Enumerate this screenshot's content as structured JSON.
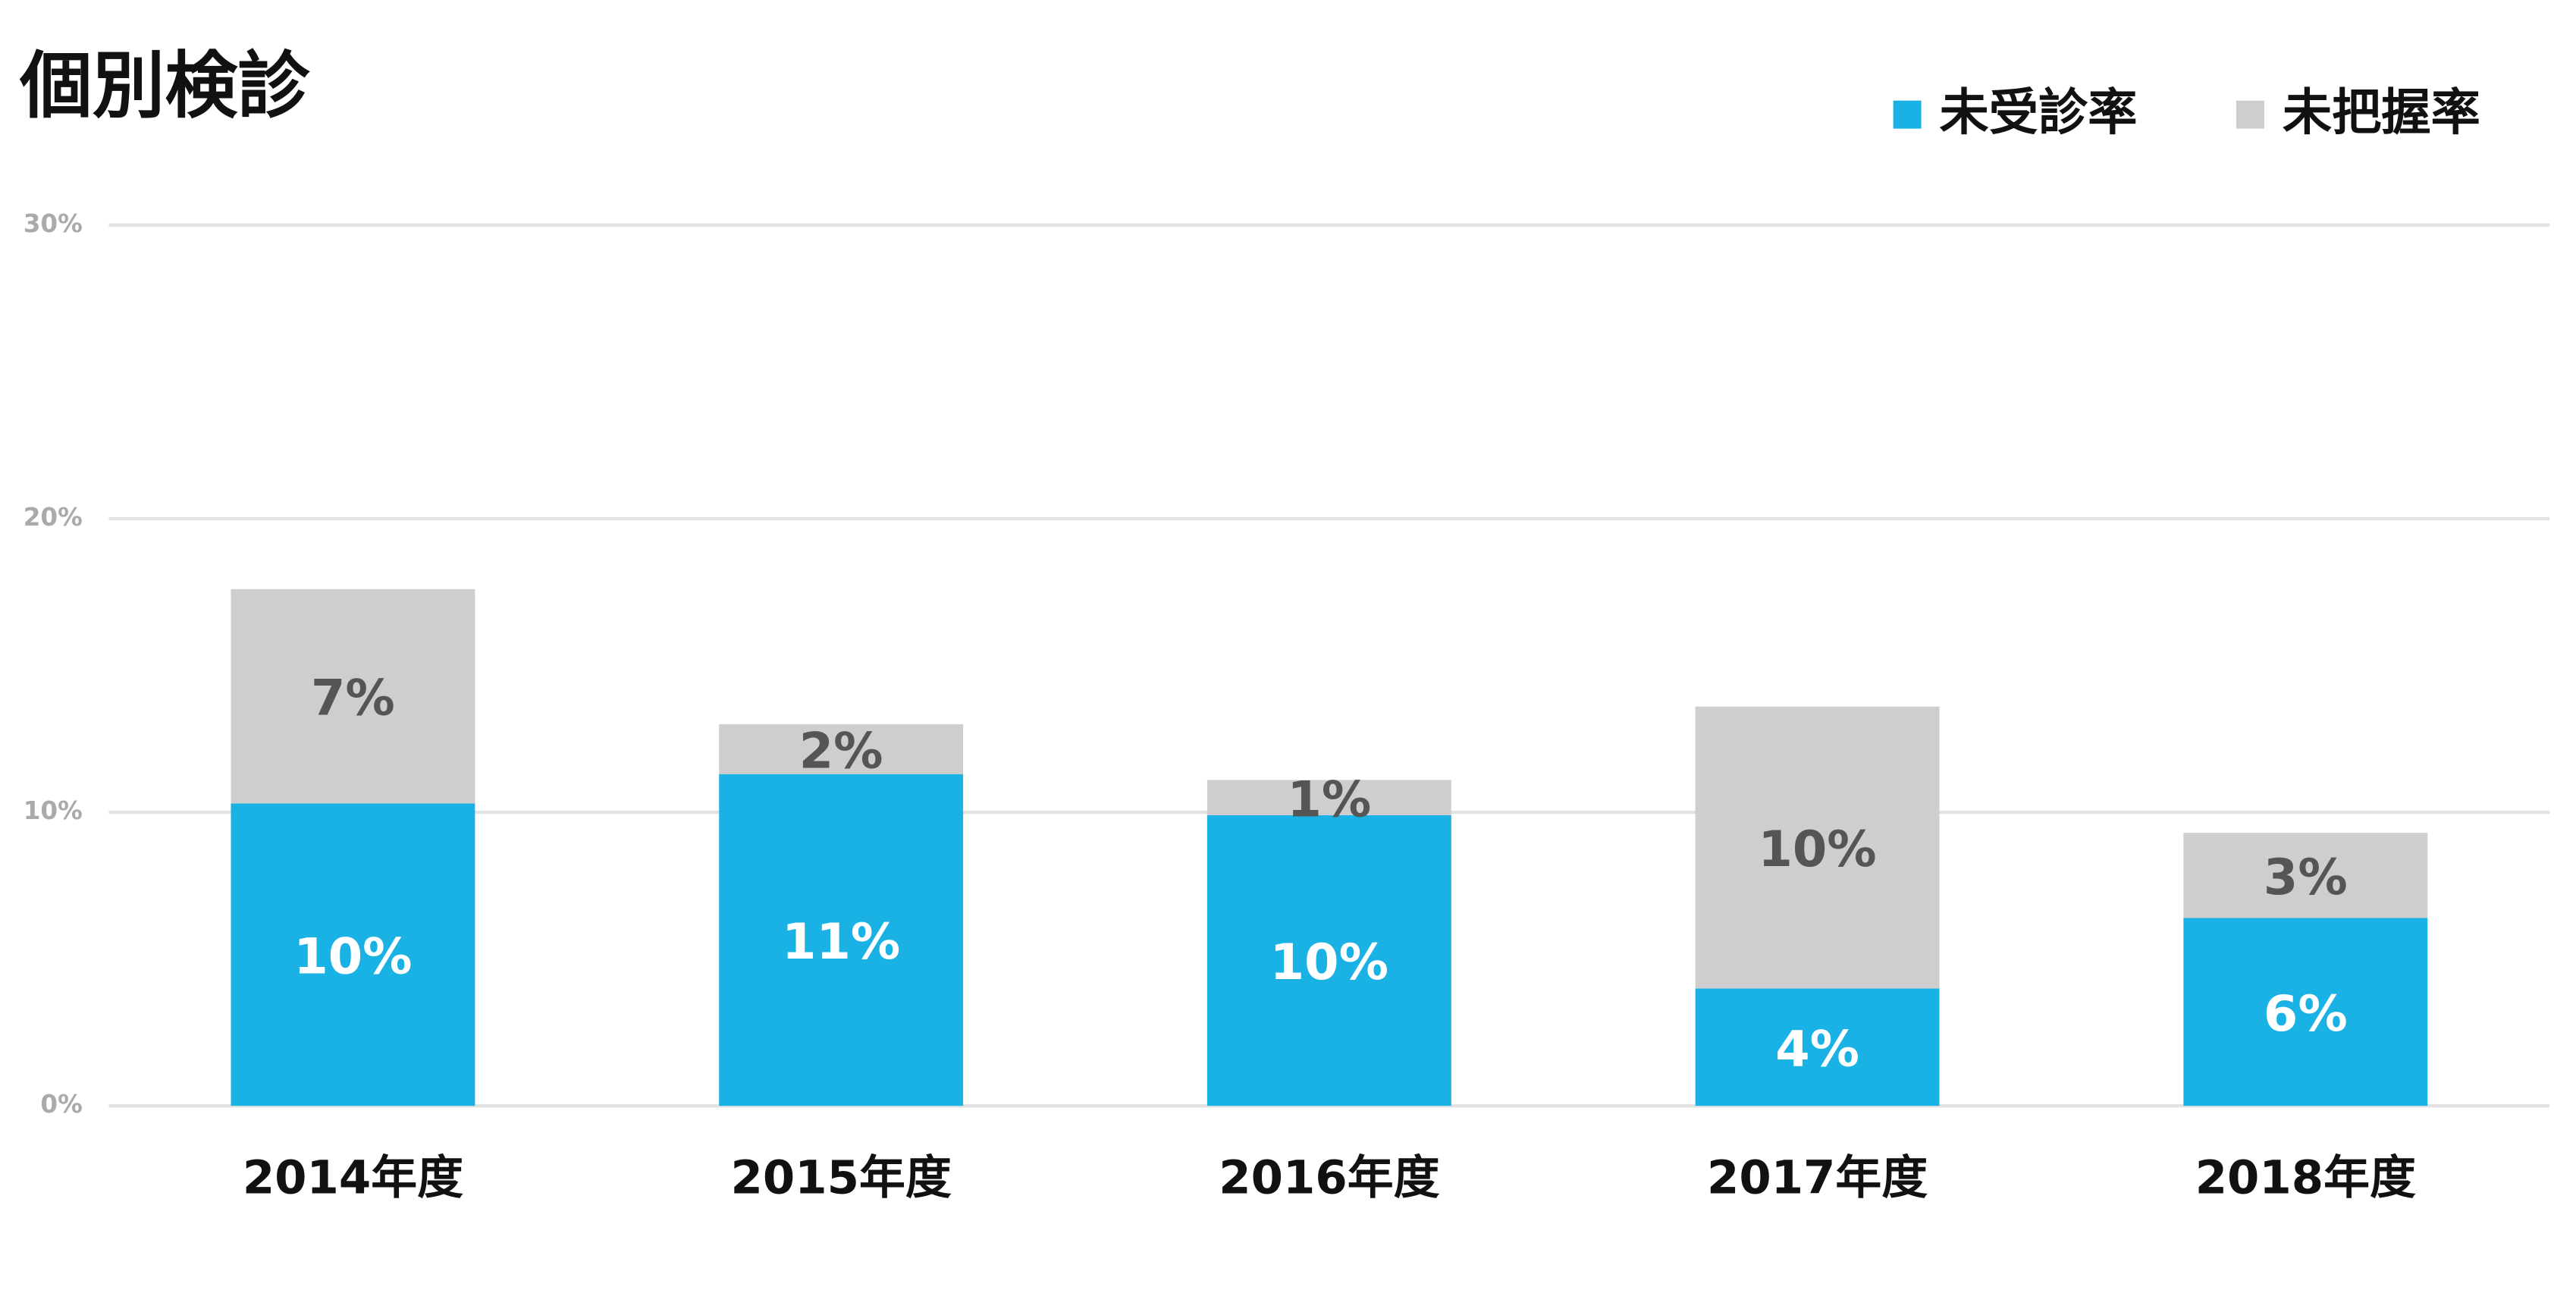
{
  "chart_data": {
    "type": "stacked-bar",
    "title": "個別検診",
    "categories": [
      "2014年度",
      "2015年度",
      "2016年度",
      "2017年度",
      "2018年度"
    ],
    "series": [
      {
        "name": "未受診率",
        "color": "#1ab2e4",
        "values": [
          10.3,
          11.3,
          9.9,
          4.0,
          6.4
        ],
        "value_labels": [
          "10%",
          "11%",
          "10%",
          "4%",
          "6%"
        ]
      },
      {
        "name": "未把握率",
        "color": "#cfcdce",
        "values": [
          7.3,
          1.7,
          1.2,
          9.6,
          2.9
        ],
        "value_labels": [
          "7%",
          "2%",
          "1%",
          "10%",
          "3%"
        ]
      }
    ],
    "ylim": [
      0,
      30
    ],
    "yticks": [
      {
        "value": 0,
        "label": "0%"
      },
      {
        "value": 10,
        "label": "10%"
      },
      {
        "value": 20,
        "label": "20%"
      },
      {
        "value": 30,
        "label": "30%"
      }
    ],
    "grid": true,
    "legend": "top-right"
  }
}
